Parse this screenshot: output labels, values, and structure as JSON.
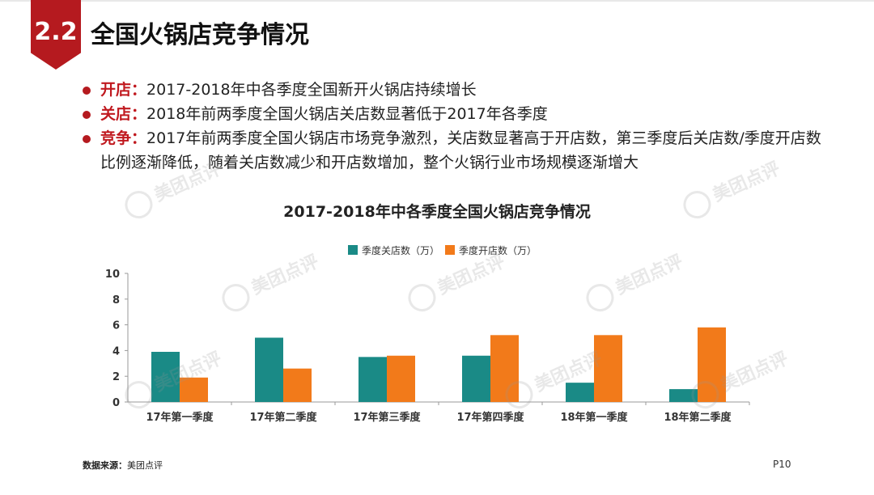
{
  "header": {
    "section_number": "2.2",
    "title": "全国火锅店竞争情况"
  },
  "bullets": [
    {
      "key": "开店：",
      "text": "2017-2018年中各季度全国新开火锅店持续增长"
    },
    {
      "key": "关店：",
      "text": "2018年前两季度全国火锅店关店数显著低于2017年各季度"
    },
    {
      "key": "竞争：",
      "text": "2017年前两季度全国火锅店市场竞争激烈，关店数显著高于开店数，第三季度后关店数/季度开店数比例逐渐降低，随着关店数减少和开店数增加，整个火锅行业市场规模逐渐增大"
    }
  ],
  "watermark": {
    "text": "美团点评"
  },
  "chart_data": {
    "type": "bar",
    "title": "2017-2018年中各季度全国火锅店竞争情况",
    "categories": [
      "17年第一季度",
      "17年第二季度",
      "17年第三季度",
      "17年第四季度",
      "18年第一季度",
      "18年第二季度"
    ],
    "series": [
      {
        "name": "季度关店数（万）",
        "color": "#1a8a86",
        "values": [
          3.9,
          5.0,
          3.5,
          3.6,
          1.5,
          1.0
        ]
      },
      {
        "name": "季度开店数（万）",
        "color": "#f27a1a",
        "values": [
          1.9,
          2.6,
          3.6,
          5.2,
          5.2,
          5.8
        ]
      }
    ],
    "ylim": [
      0,
      10
    ],
    "yticks": [
      0,
      2,
      4,
      6,
      8,
      10
    ],
    "grid": false,
    "legend_position": "top-center"
  },
  "footer": {
    "source_label": "数据来源：",
    "source_value": "美团点评",
    "page_number": "P10"
  }
}
